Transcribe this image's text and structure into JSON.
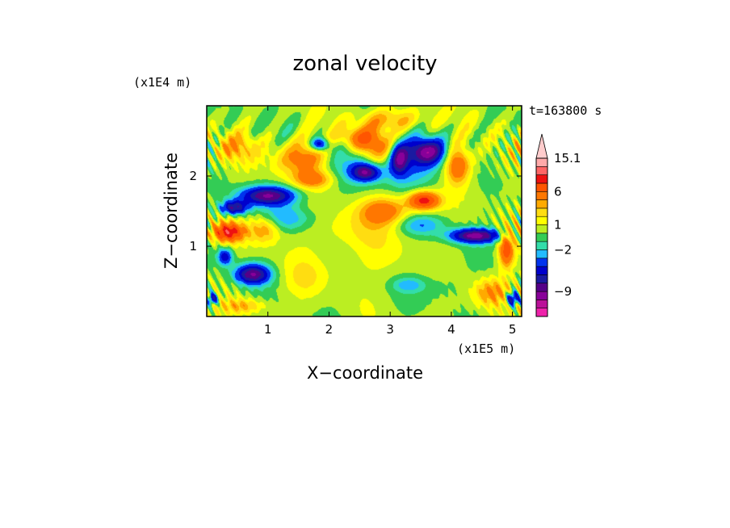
{
  "chart_data": {
    "type": "heatmap",
    "title": "zonal velocity",
    "xlabel": "X−coordinate",
    "ylabel": "Z−coordinate",
    "x_unit": "(x1E5 m)",
    "y_unit": "(x1E4 m)",
    "time_label": "t=163800 s",
    "xlim": [
      0,
      5.15
    ],
    "ylim": [
      0,
      3.0
    ],
    "x_ticks": [
      1,
      2,
      3,
      4,
      5
    ],
    "y_ticks": [
      1,
      2
    ],
    "colorbar": {
      "levels": [
        -14,
        -12,
        -10.5,
        -9,
        -7.5,
        -6,
        -4.5,
        -3,
        -2,
        -1,
        0,
        1,
        2,
        3,
        4,
        6,
        8,
        10.5,
        12.8,
        15.1
      ],
      "colors": [
        "#ee22aa",
        "#bb1199",
        "#880099",
        "#550088",
        "#1a1aa0",
        "#0000cc",
        "#0033ee",
        "#22bbff",
        "#33ddaa",
        "#33cc55",
        "#bbee22",
        "#ffff00",
        "#ffdd11",
        "#ffaa00",
        "#ff7700",
        "#ff5500",
        "#ee1111",
        "#ff6666",
        "#ffaaaa",
        "#ffcccc"
      ],
      "labels": [
        {
          "text": "15.1",
          "value": 15.1
        },
        {
          "text": "6",
          "value": 6
        },
        {
          "text": "1",
          "value": 1
        },
        {
          "text": "−2",
          "value": -2
        },
        {
          "text": "−9",
          "value": -9
        }
      ],
      "extend": "max"
    },
    "features": [
      {
        "x": 0.35,
        "z": 1.2,
        "value": 9,
        "sx": 0.25,
        "sz": 0.13
      },
      {
        "x": 0.95,
        "z": 1.25,
        "value": 4,
        "sx": 0.25,
        "sz": 0.2
      },
      {
        "x": 1.0,
        "z": 1.72,
        "value": -9,
        "sx": 0.45,
        "sz": 0.13
      },
      {
        "x": 0.45,
        "z": 1.55,
        "value": -8,
        "sx": 0.22,
        "sz": 0.1
      },
      {
        "x": 1.3,
        "z": 1.4,
        "value": -3,
        "sx": 0.45,
        "sz": 0.18
      },
      {
        "x": 0.75,
        "z": 0.6,
        "value": -9,
        "sx": 0.28,
        "sz": 0.14
      },
      {
        "x": 0.3,
        "z": 0.85,
        "value": -6,
        "sx": 0.12,
        "sz": 0.12
      },
      {
        "x": 0.45,
        "z": 2.4,
        "value": 3,
        "sx": 0.35,
        "sz": 0.2
      },
      {
        "x": 1.6,
        "z": 2.25,
        "value": 5,
        "sx": 0.45,
        "sz": 0.25
      },
      {
        "x": 1.75,
        "z": 1.95,
        "value": 4,
        "sx": 0.3,
        "sz": 0.12
      },
      {
        "x": 1.85,
        "z": 2.45,
        "value": -7,
        "sx": 0.14,
        "sz": 0.09
      },
      {
        "x": 2.6,
        "z": 2.05,
        "value": -8,
        "sx": 0.22,
        "sz": 0.12
      },
      {
        "x": 2.35,
        "z": 2.2,
        "value": -2.5,
        "sx": 0.55,
        "sz": 0.25
      },
      {
        "x": 2.75,
        "z": 2.4,
        "value": 5,
        "sx": 0.3,
        "sz": 0.25
      },
      {
        "x": 2.45,
        "z": 2.55,
        "value": 4,
        "sx": 0.3,
        "sz": 0.15
      },
      {
        "x": 3.15,
        "z": 2.25,
        "value": -8,
        "sx": 0.15,
        "sz": 0.22
      },
      {
        "x": 3.6,
        "z": 2.35,
        "value": -9,
        "sx": 0.3,
        "sz": 0.18
      },
      {
        "x": 3.3,
        "z": 2.1,
        "value": -3,
        "sx": 0.55,
        "sz": 0.3
      },
      {
        "x": 4.1,
        "z": 2.15,
        "value": 6,
        "sx": 0.2,
        "sz": 0.25
      },
      {
        "x": 3.55,
        "z": 1.65,
        "value": 9,
        "sx": 0.25,
        "sz": 0.13
      },
      {
        "x": 2.9,
        "z": 1.5,
        "value": 5,
        "sx": 0.4,
        "sz": 0.2
      },
      {
        "x": 3.5,
        "z": 1.3,
        "value": -3,
        "sx": 0.4,
        "sz": 0.14
      },
      {
        "x": 4.4,
        "z": 1.15,
        "value": -10,
        "sx": 0.4,
        "sz": 0.1
      },
      {
        "x": 4.9,
        "z": 0.95,
        "value": 7,
        "sx": 0.12,
        "sz": 0.25
      },
      {
        "x": 2.4,
        "z": 1.2,
        "value": 1.5,
        "sx": 0.7,
        "sz": 0.3
      },
      {
        "x": 2.85,
        "z": 0.8,
        "value": 0.8,
        "sx": 0.55,
        "sz": 0.3
      },
      {
        "x": 3.3,
        "z": 0.45,
        "value": -2.5,
        "sx": 0.25,
        "sz": 0.1
      },
      {
        "x": 3.9,
        "z": 0.45,
        "value": -1,
        "sx": 0.45,
        "sz": 0.22
      },
      {
        "x": 4.65,
        "z": 0.35,
        "value": 4,
        "sx": 0.3,
        "sz": 0.2
      },
      {
        "x": 5.0,
        "z": 0.25,
        "value": -8,
        "sx": 0.1,
        "sz": 0.1
      },
      {
        "x": 1.6,
        "z": 0.55,
        "value": 1.5,
        "sx": 0.35,
        "sz": 0.3
      },
      {
        "x": 2.1,
        "z": 0.65,
        "value": 0.3,
        "sx": 0.4,
        "sz": 0.2
      },
      {
        "x": 0.6,
        "z": 0.15,
        "value": 3,
        "sx": 0.35,
        "sz": 0.1
      },
      {
        "x": 0.1,
        "z": 0.25,
        "value": -7,
        "sx": 0.08,
        "sz": 0.08
      },
      {
        "x": 4.8,
        "z": 2.3,
        "value": 0.5,
        "sx": 0.35,
        "sz": 0.5
      },
      {
        "x": 3.0,
        "z": 2.8,
        "value": 3,
        "sx": 0.6,
        "sz": 0.15
      }
    ]
  }
}
